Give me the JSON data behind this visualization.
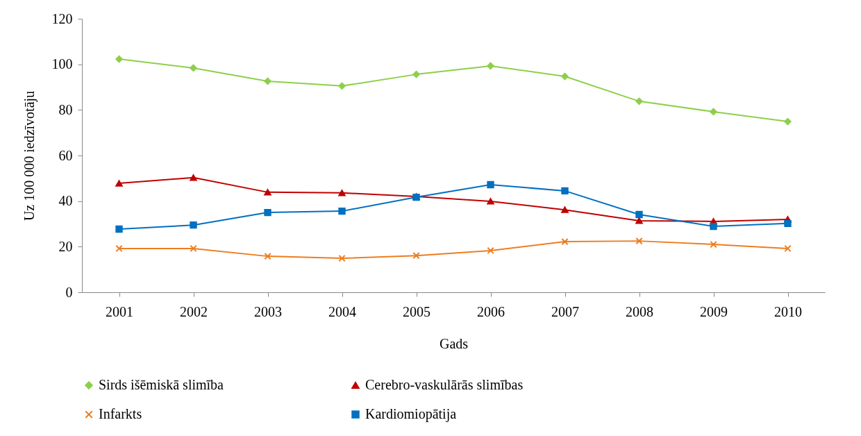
{
  "chart_data": {
    "type": "line",
    "xlabel": "Gads",
    "ylabel": "Uz 100 000 iedzīvotāju",
    "categories": [
      "2001",
      "2002",
      "2003",
      "2004",
      "2005",
      "2006",
      "2007",
      "2008",
      "2009",
      "2010"
    ],
    "ylim": [
      0,
      120
    ],
    "yticks": [
      0,
      20,
      40,
      60,
      80,
      100,
      120
    ],
    "grid": false,
    "legend": "bottom",
    "series": [
      {
        "name": "Sirds išēmiskā slimība",
        "color": "#8cd04a",
        "marker": "diamond",
        "values": [
          102.3,
          98.4,
          92.6,
          90.5,
          95.6,
          99.3,
          94.7,
          83.8,
          79.2,
          74.9
        ]
      },
      {
        "name": "Cerebro-vaskulārās slimības",
        "color": "#c00000",
        "marker": "triangle",
        "values": [
          47.8,
          50.3,
          43.9,
          43.6,
          42,
          39.9,
          36.2,
          31.4,
          31.1,
          32
        ]
      },
      {
        "name": "Infarkts",
        "color": "#ed7d1f",
        "marker": "cross",
        "values": [
          19.2,
          19.2,
          15.8,
          14.9,
          16.1,
          18.3,
          22.2,
          22.5,
          21,
          19.2
        ]
      },
      {
        "name": "Kardiomiopātija",
        "color": "#0070c0",
        "marker": "square",
        "values": [
          27.7,
          29.5,
          35,
          35.6,
          41.7,
          47.2,
          44.5,
          34.1,
          28.9,
          30.2
        ]
      }
    ]
  }
}
